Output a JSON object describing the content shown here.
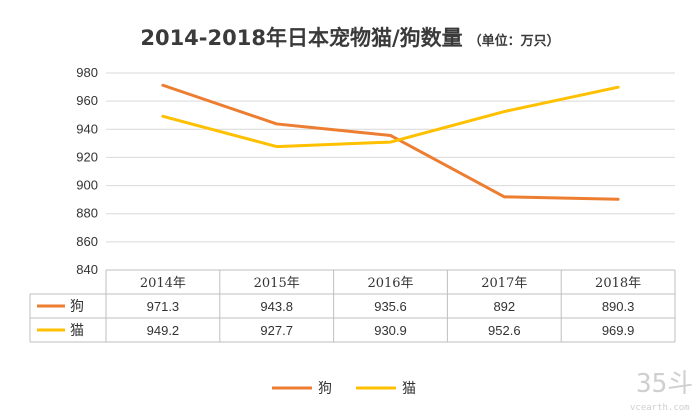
{
  "chart_data": {
    "type": "line",
    "title": "2014-2018年日本宠物猫/狗数量",
    "subtitle": "（单位：万只）",
    "categories": [
      "2014年",
      "2015年",
      "2016年",
      "2017年",
      "2018年"
    ],
    "series": [
      {
        "name": "狗",
        "color": "#ED7D31",
        "values": [
          971.3,
          943.8,
          935.6,
          892,
          890.3
        ]
      },
      {
        "name": "猫",
        "color": "#FFC000",
        "values": [
          949.2,
          927.7,
          930.9,
          952.6,
          969.9
        ]
      }
    ],
    "table_values": [
      [
        "971.3",
        "943.8",
        "935.6",
        "892",
        "890.3"
      ],
      [
        "949.2",
        "927.7",
        "930.9",
        "952.6",
        "969.9"
      ]
    ],
    "ylim": [
      840,
      980
    ],
    "yticks": [
      "980",
      "960",
      "940",
      "920",
      "900",
      "880",
      "860",
      "840"
    ],
    "grid": true,
    "legend": "bottom"
  },
  "watermark": {
    "brand": "35斗",
    "site": "vcearth.com"
  }
}
